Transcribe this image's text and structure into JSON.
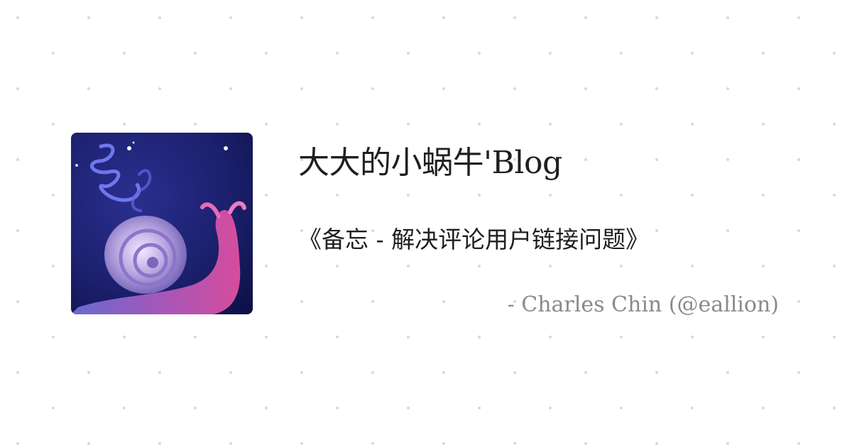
{
  "blog_title": "大大的小蜗牛'Blog",
  "post_title": "《备忘 - 解决评论用户链接问题》",
  "author": "- Charles Chin (@eallion)",
  "avatar": {
    "icon": "snail-icon",
    "colors": {
      "background": "#1b1f6b",
      "shell": "#b9a6e0",
      "body": "#c94fa3"
    }
  },
  "background": {
    "pattern": "dot-grid",
    "dot_color": "#d8d8d8"
  }
}
